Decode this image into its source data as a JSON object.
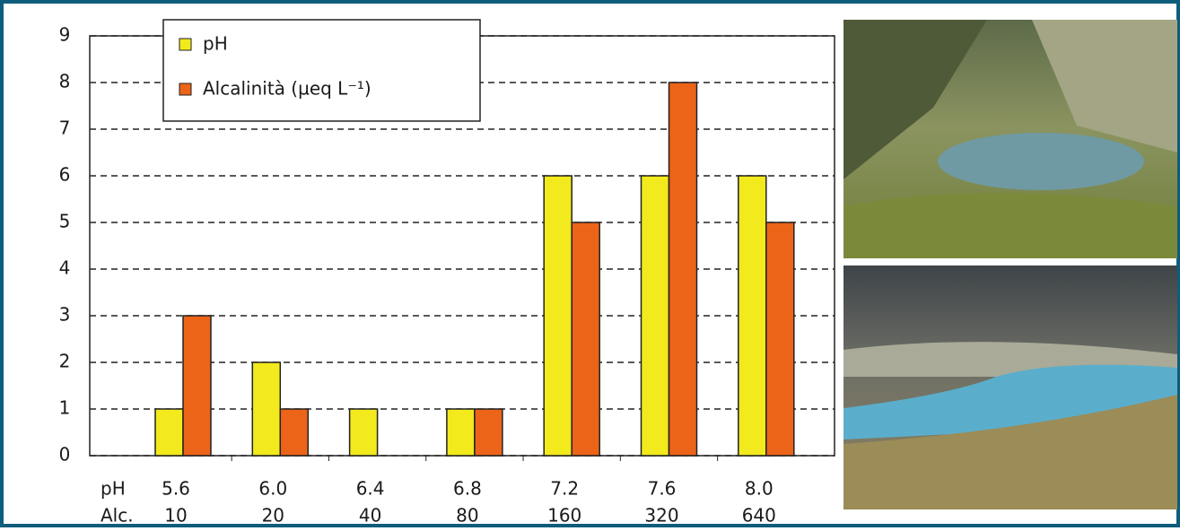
{
  "chart_data": {
    "type": "bar",
    "categories": [
      "5.6",
      "6.0",
      "6.4",
      "6.8",
      "7.2",
      "7.6",
      "8.0"
    ],
    "categories_alc": [
      "10",
      "20",
      "40",
      "80",
      "160",
      "320",
      "640"
    ],
    "row_labels": [
      "pH",
      "Alc."
    ],
    "series": [
      {
        "name": "pH",
        "color": "#f2ea1c",
        "values": [
          1,
          2,
          1,
          1,
          6,
          6,
          6
        ]
      },
      {
        "name": "Alcalinità (µeq L⁻¹)",
        "color": "#ec6418",
        "values": [
          3,
          1,
          0,
          1,
          5,
          8,
          5
        ]
      }
    ],
    "ylim": [
      0,
      9
    ],
    "yticks": [
      0,
      1,
      2,
      3,
      4,
      5,
      6,
      7,
      8,
      9
    ],
    "grid": true
  }
}
